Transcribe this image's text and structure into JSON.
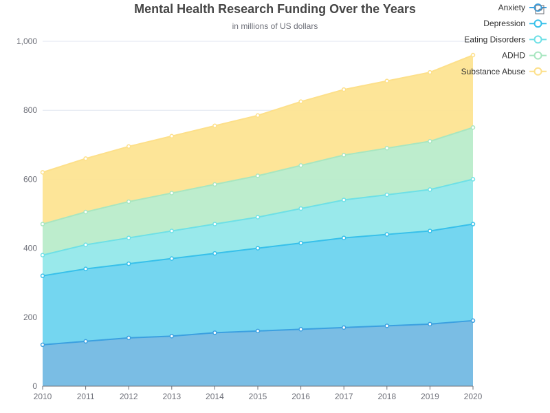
{
  "chart_data": {
    "type": "area",
    "stacked": true,
    "title": "Mental Health Research Funding Over the Years",
    "subtitle": "in millions of US dollars",
    "x": [
      "2010",
      "2011",
      "2012",
      "2013",
      "2014",
      "2015",
      "2016",
      "2017",
      "2018",
      "2019",
      "2020"
    ],
    "ylim": [
      0,
      1000
    ],
    "y_ticks": [
      0,
      200,
      400,
      600,
      800,
      1000
    ],
    "y_tick_labels": [
      "0",
      "200",
      "400",
      "600",
      "800",
      "1,000"
    ],
    "grid": true,
    "legend_position": "top-right",
    "series": [
      {
        "name": "Anxiety",
        "color": "#3ba0e0",
        "fill": "#73b9e3",
        "values": [
          120,
          130,
          140,
          145,
          155,
          160,
          165,
          170,
          175,
          180,
          190
        ]
      },
      {
        "name": "Depression",
        "color": "#37c0ea",
        "fill": "#6dd4ef",
        "values": [
          200,
          210,
          215,
          225,
          230,
          240,
          250,
          260,
          265,
          270,
          280
        ]
      },
      {
        "name": "Eating Disorders",
        "color": "#6ee0e6",
        "fill": "#93e8ea",
        "values": [
          60,
          70,
          75,
          80,
          85,
          90,
          100,
          110,
          115,
          120,
          130
        ]
      },
      {
        "name": "ADHD",
        "color": "#a8e6c0",
        "fill": "#b9ecca",
        "values": [
          90,
          95,
          105,
          110,
          115,
          120,
          125,
          130,
          135,
          140,
          150
        ]
      },
      {
        "name": "Substance Abuse",
        "color": "#fde08a",
        "fill": "#fde492",
        "values": [
          150,
          155,
          160,
          165,
          170,
          175,
          185,
          190,
          195,
          200,
          210
        ]
      }
    ]
  },
  "toolbar": {
    "icon": "data-view-icon"
  }
}
